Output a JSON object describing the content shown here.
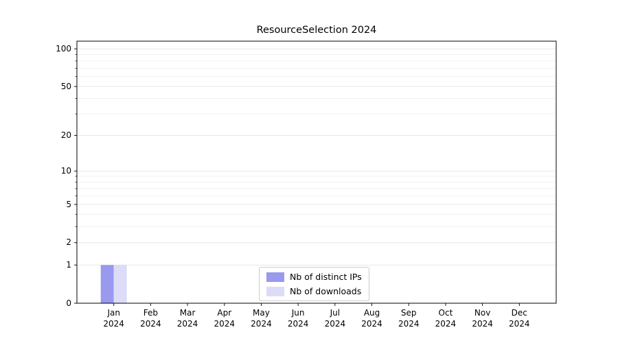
{
  "chart_data": {
    "type": "bar",
    "title": "ResourceSelection 2024",
    "categories": [
      "Jan",
      "Feb",
      "Mar",
      "Apr",
      "May",
      "Jun",
      "Jul",
      "Aug",
      "Sep",
      "Oct",
      "Nov",
      "Dec"
    ],
    "year": "2024",
    "series": [
      {
        "name": "Nb of distinct IPs",
        "color": "#9999ee",
        "values": [
          1,
          0,
          0,
          0,
          0,
          0,
          0,
          0,
          0,
          0,
          0,
          0
        ]
      },
      {
        "name": "Nb of downloads",
        "color": "#dcdcf8",
        "values": [
          1,
          0,
          0,
          0,
          0,
          0,
          0,
          0,
          0,
          0,
          0,
          0
        ]
      }
    ],
    "yscale": "log1p",
    "yticks": [
      0,
      1,
      2,
      5,
      10,
      20,
      50,
      100
    ],
    "ylim": [
      0,
      115
    ],
    "xlabel": "",
    "ylabel": "",
    "grid": "horizontal",
    "legend_position": "lower center"
  }
}
